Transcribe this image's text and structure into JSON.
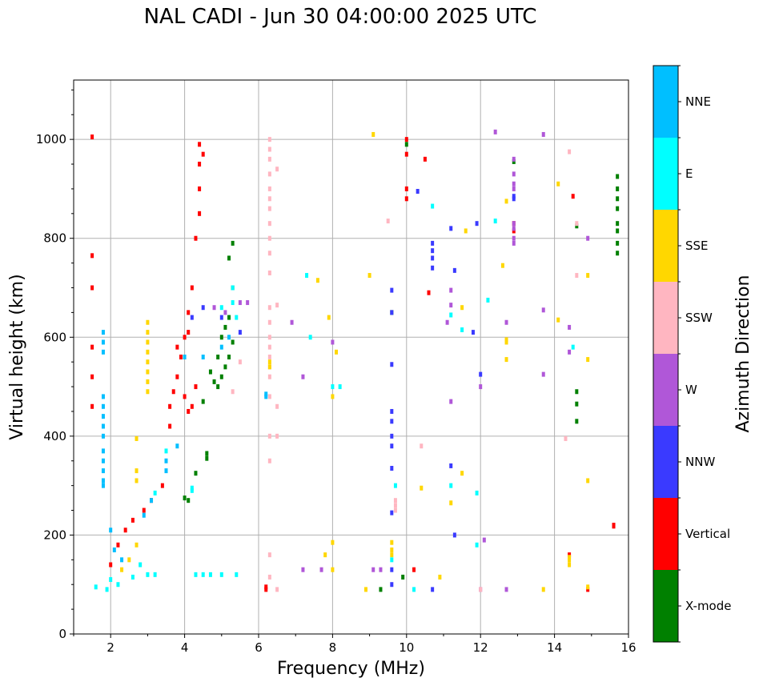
{
  "chart_data": {
    "type": "scatter",
    "title": "NAL CADI - Jun 30 04:00:00 2025 UTC",
    "xlabel": "Frequency (MHz)",
    "ylabel": "Virtual height (km)",
    "xlim": [
      1,
      16
    ],
    "ylim": [
      0,
      1120
    ],
    "xticks": [
      2,
      4,
      6,
      8,
      10,
      12,
      14,
      16
    ],
    "yticks": [
      0,
      200,
      400,
      600,
      800,
      1000
    ],
    "grid": true,
    "colorbar": {
      "label": "Azimuth Direction",
      "categories": [
        {
          "name": "X-mode",
          "color": "#008000"
        },
        {
          "name": "Vertical",
          "color": "#ff0000"
        },
        {
          "name": "NNW",
          "color": "#3a3aff"
        },
        {
          "name": "W",
          "color": "#b057d8"
        },
        {
          "name": "SSW",
          "color": "#ffb6c1"
        },
        {
          "name": "SSE",
          "color": "#ffd700"
        },
        {
          "name": "E",
          "color": "#00ffff"
        },
        {
          "name": "NNE",
          "color": "#00bfff"
        }
      ]
    },
    "series": [
      {
        "name": "X-mode",
        "points": [
          [
            4.6,
            365
          ],
          [
            4.6,
            355
          ],
          [
            4.0,
            275
          ],
          [
            4.1,
            270
          ],
          [
            4.3,
            325
          ],
          [
            4.8,
            510
          ],
          [
            4.9,
            500
          ],
          [
            5.0,
            520
          ],
          [
            5.1,
            540
          ],
          [
            4.7,
            530
          ],
          [
            5.2,
            560
          ],
          [
            5.3,
            590
          ],
          [
            5.0,
            600
          ],
          [
            5.2,
            640
          ],
          [
            5.3,
            700
          ],
          [
            5.2,
            760
          ],
          [
            5.3,
            790
          ],
          [
            4.5,
            470
          ],
          [
            4.9,
            560
          ],
          [
            5.1,
            620
          ],
          [
            9.3,
            90
          ],
          [
            9.6,
            650
          ],
          [
            14.6,
            490
          ],
          [
            14.6,
            465
          ],
          [
            14.6,
            430
          ],
          [
            14.6,
            825
          ],
          [
            15.7,
            925
          ],
          [
            15.7,
            900
          ],
          [
            15.7,
            880
          ],
          [
            15.7,
            860
          ],
          [
            15.7,
            830
          ],
          [
            15.7,
            815
          ],
          [
            15.7,
            790
          ],
          [
            15.7,
            770
          ],
          [
            10.0,
            990
          ],
          [
            12.9,
            955
          ],
          [
            9.9,
            115
          ]
        ]
      },
      {
        "name": "Vertical",
        "points": [
          [
            1.5,
            1005
          ],
          [
            1.5,
            765
          ],
          [
            1.5,
            700
          ],
          [
            1.5,
            580
          ],
          [
            1.5,
            520
          ],
          [
            1.5,
            460
          ],
          [
            2.0,
            140
          ],
          [
            2.2,
            180
          ],
          [
            2.4,
            210
          ],
          [
            2.6,
            230
          ],
          [
            2.9,
            250
          ],
          [
            3.1,
            270
          ],
          [
            3.4,
            300
          ],
          [
            3.6,
            420
          ],
          [
            3.6,
            460
          ],
          [
            3.7,
            490
          ],
          [
            3.8,
            520
          ],
          [
            3.9,
            560
          ],
          [
            4.0,
            600
          ],
          [
            4.1,
            650
          ],
          [
            4.2,
            700
          ],
          [
            4.3,
            800
          ],
          [
            4.4,
            850
          ],
          [
            4.4,
            900
          ],
          [
            4.4,
            950
          ],
          [
            4.4,
            990
          ],
          [
            4.5,
            970
          ],
          [
            4.0,
            480
          ],
          [
            4.1,
            450
          ],
          [
            4.2,
            460
          ],
          [
            4.3,
            500
          ],
          [
            3.8,
            580
          ],
          [
            4.1,
            610
          ],
          [
            6.2,
            90
          ],
          [
            6.2,
            95
          ],
          [
            10.0,
            1000
          ],
          [
            10.0,
            970
          ],
          [
            10.0,
            900
          ],
          [
            10.0,
            880
          ],
          [
            10.5,
            960
          ],
          [
            10.6,
            690
          ],
          [
            10.2,
            130
          ],
          [
            12.9,
            830
          ],
          [
            12.9,
            815
          ],
          [
            15.6,
            220
          ],
          [
            15.6,
            218
          ],
          [
            14.9,
            90
          ],
          [
            14.5,
            885
          ],
          [
            14.4,
            160
          ]
        ]
      },
      {
        "name": "NNW",
        "points": [
          [
            9.6,
            695
          ],
          [
            9.6,
            650
          ],
          [
            9.6,
            545
          ],
          [
            9.6,
            450
          ],
          [
            9.6,
            430
          ],
          [
            9.6,
            400
          ],
          [
            9.6,
            380
          ],
          [
            9.6,
            335
          ],
          [
            9.6,
            245
          ],
          [
            9.6,
            130
          ],
          [
            9.6,
            100
          ],
          [
            10.3,
            895
          ],
          [
            10.7,
            790
          ],
          [
            10.7,
            775
          ],
          [
            10.7,
            760
          ],
          [
            10.7,
            740
          ],
          [
            11.2,
            820
          ],
          [
            11.2,
            340
          ],
          [
            11.3,
            200
          ],
          [
            11.3,
            735
          ],
          [
            11.8,
            610
          ],
          [
            11.9,
            830
          ],
          [
            12.0,
            525
          ],
          [
            12.9,
            880
          ],
          [
            12.9,
            885
          ],
          [
            4.2,
            640
          ],
          [
            4.5,
            660
          ],
          [
            5.0,
            640
          ],
          [
            5.5,
            610
          ],
          [
            10.7,
            90
          ]
        ]
      },
      {
        "name": "W",
        "points": [
          [
            12.9,
            960
          ],
          [
            12.9,
            930
          ],
          [
            12.9,
            910
          ],
          [
            12.9,
            900
          ],
          [
            12.9,
            830
          ],
          [
            12.9,
            820
          ],
          [
            12.9,
            800
          ],
          [
            12.9,
            790
          ],
          [
            13.7,
            655
          ],
          [
            13.7,
            525
          ],
          [
            12.7,
            630
          ],
          [
            12.4,
            1015
          ],
          [
            11.2,
            695
          ],
          [
            11.2,
            665
          ],
          [
            11.2,
            470
          ],
          [
            11.1,
            630
          ],
          [
            12.0,
            500
          ],
          [
            12.0,
            90
          ],
          [
            12.1,
            190
          ],
          [
            12.7,
            90
          ],
          [
            14.4,
            620
          ],
          [
            14.4,
            570
          ],
          [
            14.9,
            800
          ],
          [
            9.1,
            130
          ],
          [
            9.3,
            130
          ],
          [
            8.0,
            590
          ],
          [
            7.7,
            130
          ],
          [
            7.2,
            130
          ],
          [
            7.2,
            520
          ],
          [
            6.9,
            630
          ],
          [
            4.8,
            660
          ],
          [
            5.1,
            650
          ],
          [
            5.5,
            670
          ],
          [
            5.7,
            670
          ],
          [
            13.7,
            1010
          ]
        ]
      },
      {
        "name": "SSW",
        "points": [
          [
            6.3,
            1000
          ],
          [
            6.3,
            980
          ],
          [
            6.3,
            960
          ],
          [
            6.3,
            930
          ],
          [
            6.3,
            900
          ],
          [
            6.3,
            880
          ],
          [
            6.3,
            860
          ],
          [
            6.3,
            830
          ],
          [
            6.3,
            800
          ],
          [
            6.3,
            770
          ],
          [
            6.3,
            730
          ],
          [
            6.3,
            660
          ],
          [
            6.3,
            630
          ],
          [
            6.3,
            600
          ],
          [
            6.3,
            580
          ],
          [
            6.3,
            560
          ],
          [
            6.3,
            540
          ],
          [
            6.3,
            520
          ],
          [
            6.3,
            480
          ],
          [
            6.3,
            400
          ],
          [
            6.3,
            350
          ],
          [
            6.3,
            160
          ],
          [
            6.3,
            115
          ],
          [
            6.5,
            90
          ],
          [
            6.5,
            940
          ],
          [
            6.5,
            665
          ],
          [
            6.5,
            460
          ],
          [
            6.5,
            400
          ],
          [
            9.5,
            835
          ],
          [
            9.7,
            270
          ],
          [
            9.7,
            260
          ],
          [
            9.7,
            250
          ],
          [
            10.4,
            380
          ],
          [
            12.0,
            90
          ],
          [
            14.3,
            395
          ],
          [
            14.4,
            975
          ],
          [
            14.6,
            725
          ],
          [
            14.6,
            830
          ],
          [
            5.3,
            490
          ],
          [
            5.5,
            550
          ]
        ]
      },
      {
        "name": "SSE",
        "points": [
          [
            3.0,
            630
          ],
          [
            3.0,
            610
          ],
          [
            3.0,
            590
          ],
          [
            3.0,
            570
          ],
          [
            3.0,
            550
          ],
          [
            3.0,
            530
          ],
          [
            3.0,
            510
          ],
          [
            3.0,
            490
          ],
          [
            2.7,
            395
          ],
          [
            2.7,
            330
          ],
          [
            2.7,
            310
          ],
          [
            2.7,
            180
          ],
          [
            2.5,
            150
          ],
          [
            2.3,
            130
          ],
          [
            6.3,
            550
          ],
          [
            6.3,
            540
          ],
          [
            7.6,
            715
          ],
          [
            7.9,
            640
          ],
          [
            8.0,
            480
          ],
          [
            8.1,
            570
          ],
          [
            8.0,
            185
          ],
          [
            8.0,
            130
          ],
          [
            7.8,
            160
          ],
          [
            9.0,
            725
          ],
          [
            9.1,
            1010
          ],
          [
            9.6,
            185
          ],
          [
            9.6,
            170
          ],
          [
            9.6,
            160
          ],
          [
            8.9,
            90
          ],
          [
            10.4,
            295
          ],
          [
            10.9,
            115
          ],
          [
            11.2,
            265
          ],
          [
            11.5,
            325
          ],
          [
            11.5,
            660
          ],
          [
            11.6,
            815
          ],
          [
            12.6,
            745
          ],
          [
            12.7,
            595
          ],
          [
            12.7,
            590
          ],
          [
            12.7,
            555
          ],
          [
            12.7,
            875
          ],
          [
            14.1,
            910
          ],
          [
            14.1,
            635
          ],
          [
            14.4,
            155
          ],
          [
            14.4,
            150
          ],
          [
            14.4,
            140
          ],
          [
            14.9,
            310
          ],
          [
            14.9,
            95
          ],
          [
            14.9,
            555
          ],
          [
            14.9,
            725
          ],
          [
            13.7,
            90
          ]
        ]
      },
      {
        "name": "E",
        "points": [
          [
            4.3,
            120
          ],
          [
            4.5,
            120
          ],
          [
            4.7,
            120
          ],
          [
            5.0,
            120
          ],
          [
            5.4,
            120
          ],
          [
            4.2,
            295
          ],
          [
            4.2,
            290
          ],
          [
            3.5,
            370
          ],
          [
            3.2,
            285
          ],
          [
            3.2,
            120
          ],
          [
            3.0,
            120
          ],
          [
            2.6,
            115
          ],
          [
            2.0,
            110
          ],
          [
            1.6,
            95
          ],
          [
            1.9,
            90
          ],
          [
            2.2,
            100
          ],
          [
            2.8,
            140
          ],
          [
            5.0,
            660
          ],
          [
            5.3,
            670
          ],
          [
            5.3,
            700
          ],
          [
            5.4,
            640
          ],
          [
            7.3,
            725
          ],
          [
            7.4,
            600
          ],
          [
            8.2,
            500
          ],
          [
            8.0,
            500
          ],
          [
            9.7,
            300
          ],
          [
            9.6,
            150
          ],
          [
            10.2,
            90
          ],
          [
            11.2,
            645
          ],
          [
            11.2,
            300
          ],
          [
            11.5,
            615
          ],
          [
            11.9,
            285
          ],
          [
            11.9,
            180
          ],
          [
            12.2,
            675
          ],
          [
            12.4,
            835
          ],
          [
            14.5,
            580
          ],
          [
            10.7,
            865
          ]
        ]
      },
      {
        "name": "NNE",
        "points": [
          [
            1.8,
            610
          ],
          [
            1.8,
            590
          ],
          [
            1.8,
            570
          ],
          [
            1.8,
            480
          ],
          [
            1.8,
            460
          ],
          [
            1.8,
            440
          ],
          [
            1.8,
            420
          ],
          [
            1.8,
            400
          ],
          [
            1.8,
            370
          ],
          [
            1.8,
            350
          ],
          [
            1.8,
            330
          ],
          [
            1.8,
            310
          ],
          [
            1.8,
            300
          ],
          [
            2.0,
            210
          ],
          [
            2.1,
            170
          ],
          [
            2.3,
            150
          ],
          [
            2.9,
            240
          ],
          [
            3.1,
            270
          ],
          [
            3.5,
            350
          ],
          [
            3.5,
            330
          ],
          [
            3.8,
            380
          ],
          [
            4.0,
            560
          ],
          [
            4.5,
            560
          ],
          [
            5.0,
            580
          ],
          [
            5.2,
            600
          ],
          [
            6.2,
            485
          ],
          [
            6.2,
            480
          ]
        ]
      }
    ]
  }
}
